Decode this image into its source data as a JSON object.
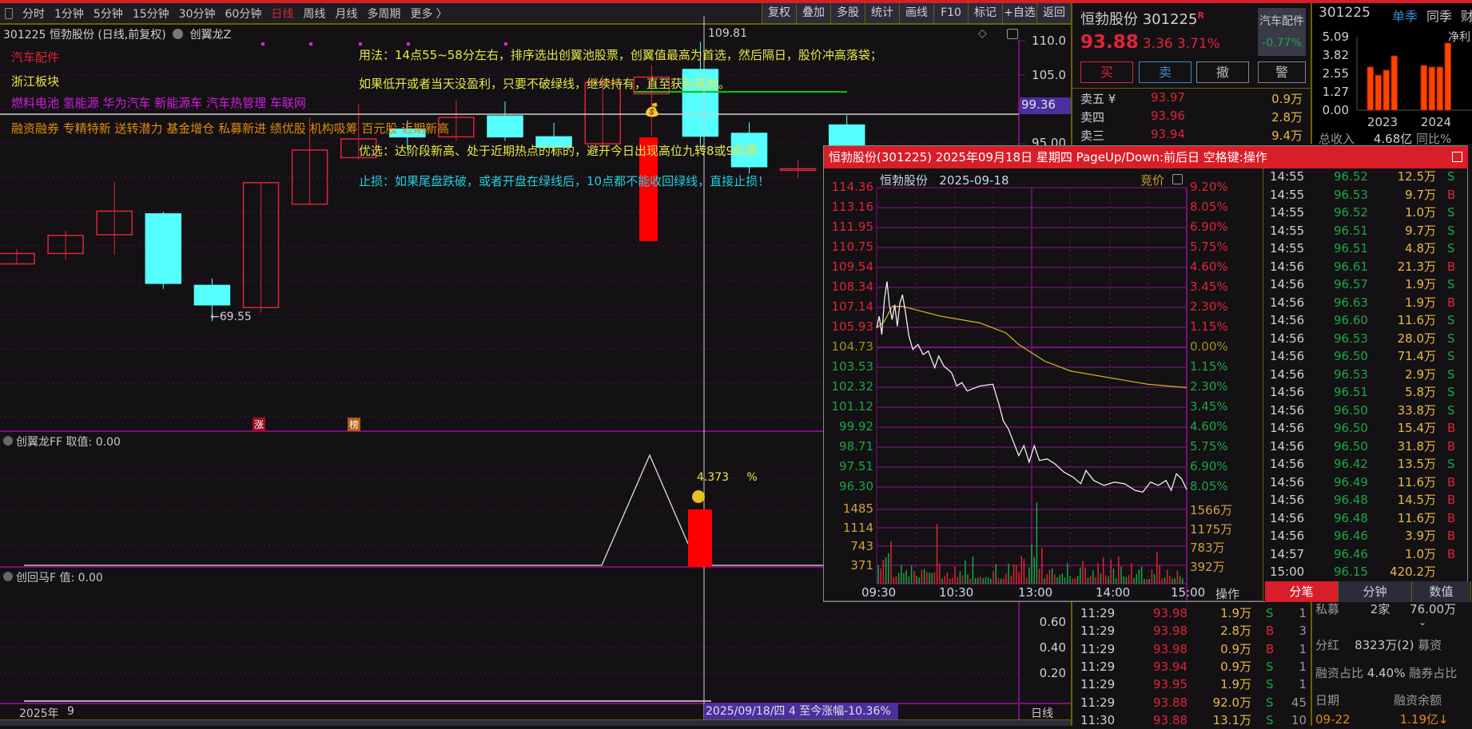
{
  "toolbar": {
    "periods": [
      "分时",
      "1分钟",
      "5分钟",
      "15分钟",
      "30分钟",
      "60分钟",
      "日线",
      "周线",
      "月线",
      "多周期",
      "更多 〉"
    ],
    "active": "日线",
    "buttons": [
      "复权",
      "叠加",
      "多股",
      "统计",
      "画线",
      "F10",
      "标记",
      "+自选",
      "返回"
    ]
  },
  "chart_header": {
    "title": "301225 恒勃股份 (日线,前复权)",
    "indicator": "创翼龙Z"
  },
  "overlays": {
    "sector": "汽车配件",
    "region": "浙江板块",
    "concepts": "燃料电池 氢能源 华为汽车 新能源车 汽车热管理 车联网",
    "tags": "融资融券 专精特新 送转潜力 基金增仓 私募新进 绩优股 机构吸筹 百元股 近期新高",
    "usage": "用法：14点55~58分左右，排序选出创翼池股票，创翼值最高为首选，然后隔日，股价冲高落袋；",
    "hold": "如果低开或者当天没盈利，只要不破绿线，继续持有，直至获利高抛。",
    "prefer": "优选：达阶段新高、处于近期热点的标的，避开今日出现高位九转8或9的票",
    "stop": "止损：如果尾盘跌破，或者开盘在绿线后，10点都不能收回绿线，直接止损！"
  },
  "kline": {
    "y_ticks": [
      "110.0",
      "105.0",
      "95.00"
    ],
    "cursor_price": "99.36",
    "high_label": "109.81",
    "low_label": "←69.55",
    "badges": [
      "涨",
      "榜"
    ],
    "colors": {
      "up": "#e0243a",
      "down": "#55ffff"
    },
    "candles": [
      [
        77.8,
        79.9,
        77.8,
        79.3
      ],
      [
        79.3,
        82.6,
        78.4,
        81.9
      ],
      [
        82.0,
        89.6,
        79.1,
        85.4
      ],
      [
        85.0,
        85.3,
        74.2,
        75.0
      ],
      [
        74.7,
        75.7,
        69.55,
        71.9
      ],
      [
        71.5,
        89.5,
        70.8,
        89.5
      ],
      [
        86.4,
        98.9,
        86.4,
        94.2
      ],
      [
        93.1,
        100.9,
        92.8,
        95.8
      ],
      [
        97.2,
        98.5,
        94.2,
        96.1
      ],
      [
        96.1,
        101.4,
        95.5,
        98.9
      ],
      [
        99.1,
        101.2,
        95.5,
        96.1
      ],
      [
        96.1,
        98.1,
        93.5,
        94.6
      ],
      [
        95.1,
        105.0,
        94.9,
        103.9
      ],
      [
        102.3,
        106.4,
        96.2,
        104.7
      ],
      [
        105.8,
        109.8,
        94.2,
        96.2
      ],
      [
        96.6,
        98.2,
        90.8,
        91.8
      ],
      [
        91.4,
        92.8,
        90.1,
        91.5
      ],
      [
        97.8,
        99.2,
        94.0,
        94.5
      ]
    ]
  },
  "ind1": {
    "label": "创翼龙FF 取值: 0.00",
    "value": "4.373",
    "unit": "%"
  },
  "ind2": {
    "label": "创回马F 值: 0.00",
    "y_ticks": [
      "0.60",
      "0.40",
      "0.20"
    ]
  },
  "date_axis": {
    "year": "2025年",
    "month": "9",
    "cursor": "2025/09/18/四 4 至今涨幅-10.36%",
    "period": "日线"
  },
  "quote": {
    "name": "恒勃股份",
    "code": "301225",
    "badge": "R",
    "price": "93.88",
    "change": "3.36",
    "pct": "3.71%",
    "sector": "汽车配件",
    "sector_pct": "-0.77%",
    "buttons": [
      "买",
      "卖",
      "撤",
      "警"
    ],
    "asks": [
      {
        "label": "卖五 ¥",
        "price": "93.97",
        "vol": "0.9万"
      },
      {
        "label": "卖四",
        "price": "93.96",
        "vol": "2.8万"
      },
      {
        "label": "卖三",
        "price": "93.94",
        "vol": "9.4万"
      }
    ],
    "trades": [
      [
        "11:29",
        "93.98",
        "1.9万",
        "S",
        "1"
      ],
      [
        "11:29",
        "93.98",
        "2.8万",
        "B",
        "3"
      ],
      [
        "11:29",
        "93.98",
        "0.9万",
        "B",
        "1"
      ],
      [
        "11:29",
        "93.94",
        "0.9万",
        "S",
        "1"
      ],
      [
        "11:29",
        "93.95",
        "1.9万",
        "S",
        "1"
      ],
      [
        "11:29",
        "93.88",
        "92.0万",
        "S",
        "45"
      ],
      [
        "11:30",
        "93.88",
        "13.1万",
        "S",
        "10"
      ]
    ]
  },
  "finance": {
    "code": "301225",
    "tabs": [
      "单季",
      "同季",
      "财"
    ],
    "series_label": "净利",
    "y_ticks": [
      "5.09",
      "3.82",
      "2.55",
      "1.27",
      "0.00"
    ],
    "years": [
      "2023",
      "2024"
    ],
    "bars": [
      [
        2.99,
        2.43,
        2.77,
        3.76
      ],
      [
        3.1,
        2.99,
        2.99,
        4.65
      ]
    ],
    "ymax": 5.09,
    "revenue_label": "总收入",
    "revenue": "4.68亿",
    "yoy_label": "同比%"
  },
  "stats": {
    "pe_label": "私募",
    "pe_count": "2家",
    "pe_amount": "76.00万",
    "div_label": "分红",
    "div_value": "8323万(2)",
    "raise_label": "募资",
    "margin_label": "融资占比",
    "margin_value": "4.40%",
    "short_label": "融券占比",
    "col_date": "日期",
    "col_balance": "融资余额",
    "date": "09-22",
    "balance": "1.19亿↓"
  },
  "popup": {
    "title": "恒勃股份(301225) 2025年09月18日 星期四 PageUp/Down:前后日 空格键:操作",
    "name": "恒勃股份",
    "date": "2025-09-18",
    "auction": "竞价",
    "price_ticks": [
      "114.36",
      "113.16",
      "111.95",
      "110.75",
      "109.54",
      "108.34",
      "107.14",
      "105.93",
      "104.73",
      "103.53",
      "102.32",
      "101.12",
      "99.92",
      "98.71",
      "97.51",
      "96.30"
    ],
    "pct_ticks": [
      "9.20%",
      "8.05%",
      "6.90%",
      "5.75%",
      "4.60%",
      "3.45%",
      "2.30%",
      "1.15%",
      "0.00%",
      "1.15%",
      "2.30%",
      "3.45%",
      "4.60%",
      "5.75%",
      "6.90%",
      "8.05%"
    ],
    "vol_ticks": [
      "1485",
      "1114",
      "743",
      "371"
    ],
    "vol_right_ticks": [
      "1566万",
      "1175万",
      "783万",
      "392万"
    ],
    "time_ticks": [
      "09:30",
      "10:30",
      "13:00",
      "14:00",
      "15:00"
    ],
    "op_label": "操作",
    "price_range": [
      96.3,
      114.36
    ],
    "price_series": [
      [
        0,
        105.9
      ],
      [
        2,
        106.6
      ],
      [
        4,
        105.5
      ],
      [
        6,
        107.6
      ],
      [
        8,
        108.7
      ],
      [
        10,
        107.2
      ],
      [
        12,
        106.4
      ],
      [
        14,
        107.3
      ],
      [
        16,
        106.0
      ],
      [
        18,
        107.4
      ],
      [
        20,
        107.9
      ],
      [
        22,
        107.0
      ],
      [
        25,
        105.4
      ],
      [
        28,
        104.6
      ],
      [
        32,
        104.9
      ],
      [
        36,
        104.3
      ],
      [
        40,
        104.5
      ],
      [
        45,
        103.5
      ],
      [
        48,
        104.2
      ],
      [
        52,
        103.6
      ],
      [
        58,
        103.2
      ],
      [
        62,
        102.4
      ],
      [
        66,
        102.6
      ],
      [
        70,
        102.1
      ],
      [
        80,
        102.4
      ],
      [
        90,
        102.5
      ],
      [
        95,
        101.2
      ],
      [
        98,
        100.3
      ],
      [
        102,
        99.8
      ],
      [
        106,
        99.0
      ],
      [
        110,
        98.2
      ],
      [
        114,
        98.8
      ],
      [
        118,
        97.8
      ],
      [
        122,
        98.8
      ],
      [
        126,
        97.9
      ],
      [
        132,
        98.0
      ],
      [
        138,
        97.7
      ],
      [
        145,
        97.2
      ],
      [
        152,
        96.9
      ],
      [
        158,
        96.5
      ],
      [
        162,
        97.3
      ],
      [
        168,
        96.7
      ],
      [
        176,
        96.4
      ],
      [
        184,
        96.6
      ],
      [
        192,
        96.5
      ],
      [
        200,
        96.1
      ],
      [
        206,
        96.0
      ],
      [
        212,
        96.6
      ],
      [
        218,
        96.4
      ],
      [
        224,
        96.7
      ],
      [
        228,
        96.1
      ],
      [
        232,
        97.1
      ],
      [
        236,
        96.8
      ],
      [
        240,
        96.15
      ]
    ],
    "avg_series": [
      [
        0,
        105.9
      ],
      [
        6,
        106.3
      ],
      [
        12,
        107.2
      ],
      [
        20,
        107.2
      ],
      [
        30,
        107.0
      ],
      [
        50,
        106.6
      ],
      [
        80,
        106.2
      ],
      [
        100,
        105.6
      ],
      [
        110,
        104.9
      ],
      [
        130,
        103.9
      ],
      [
        150,
        103.3
      ],
      [
        180,
        102.9
      ],
      [
        210,
        102.5
      ],
      [
        240,
        102.3
      ]
    ],
    "trades": [
      [
        "14:55",
        "96.52",
        "12.5万",
        "S"
      ],
      [
        "14:55",
        "96.53",
        "9.7万",
        "B"
      ],
      [
        "14:55",
        "96.52",
        "1.0万",
        "S"
      ],
      [
        "14:55",
        "96.51",
        "9.7万",
        "S"
      ],
      [
        "14:55",
        "96.51",
        "4.8万",
        "S"
      ],
      [
        "14:56",
        "96.61",
        "21.3万",
        "B"
      ],
      [
        "14:56",
        "96.57",
        "1.9万",
        "S"
      ],
      [
        "14:56",
        "96.63",
        "1.9万",
        "B"
      ],
      [
        "14:56",
        "96.60",
        "11.6万",
        "S"
      ],
      [
        "14:56",
        "96.53",
        "28.0万",
        "S"
      ],
      [
        "14:56",
        "96.50",
        "71.4万",
        "S"
      ],
      [
        "14:56",
        "96.53",
        "2.9万",
        "S"
      ],
      [
        "14:56",
        "96.51",
        "5.8万",
        "S"
      ],
      [
        "14:56",
        "96.50",
        "33.8万",
        "S"
      ],
      [
        "14:56",
        "96.50",
        "15.4万",
        "B"
      ],
      [
        "14:56",
        "96.50",
        "31.8万",
        "B"
      ],
      [
        "14:56",
        "96.42",
        "13.5万",
        "S"
      ],
      [
        "14:56",
        "96.49",
        "11.6万",
        "B"
      ],
      [
        "14:56",
        "96.48",
        "14.5万",
        "B"
      ],
      [
        "14:56",
        "96.48",
        "11.6万",
        "B"
      ],
      [
        "14:56",
        "96.46",
        "3.9万",
        "B"
      ],
      [
        "14:57",
        "96.46",
        "1.0万",
        "B"
      ],
      [
        "15:00",
        "96.15",
        "420.2万",
        ""
      ]
    ],
    "tabs": [
      "分笔",
      "分钟",
      "数值"
    ],
    "active_tab": "分笔"
  }
}
